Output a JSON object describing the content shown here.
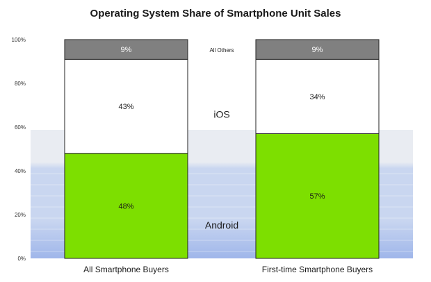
{
  "chart_data": {
    "type": "bar",
    "stacked": true,
    "title": "Operating System Share of Smartphone Unit Sales",
    "categories": [
      "All Smartphone Buyers",
      "First-time Smartphone Buyers"
    ],
    "ylim": [
      0,
      100
    ],
    "yticks": [
      "0%",
      "20%",
      "40%",
      "60%",
      "80%",
      "100%"
    ],
    "series": [
      {
        "name": "Android",
        "values": [
          48,
          57
        ],
        "labels": [
          "48%",
          "57%"
        ],
        "color": "#7ddf00",
        "text_color": "#1a1a1a"
      },
      {
        "name": "iOS",
        "values": [
          43,
          34
        ],
        "labels": [
          "43%",
          "34%"
        ],
        "color": "#ffffff",
        "text_color": "#1a1a1a"
      },
      {
        "name": "All Others",
        "values": [
          9,
          9
        ],
        "labels": [
          "9%",
          "9%"
        ],
        "color": "#808080",
        "text_color": "#ffffff"
      }
    ],
    "background_band_colors": [
      "#e9ecf2",
      "#c9d6f0",
      "#9fb6ea"
    ]
  }
}
